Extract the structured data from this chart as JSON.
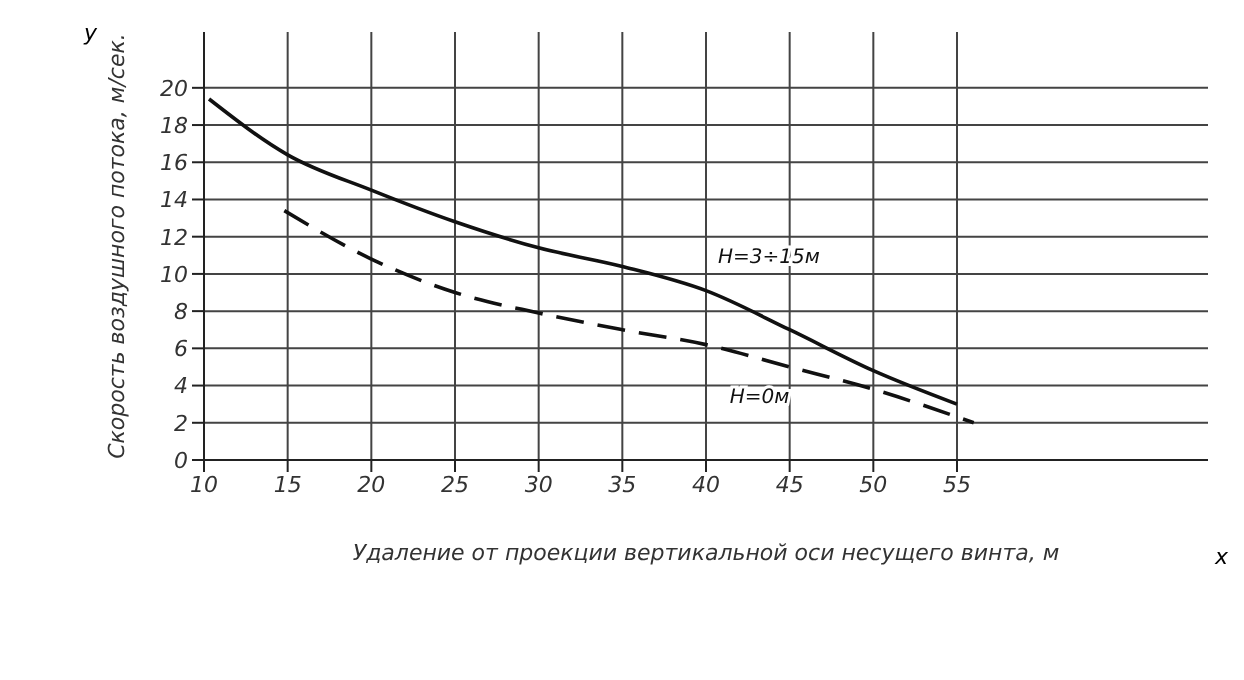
{
  "chart_data": {
    "type": "line",
    "xlabel": "Удаление от проекции вертикальной оси несущего винта, м",
    "ylabel": "Скорость воздушного потока, м/сек.",
    "series": [
      {
        "name": "H=3÷15м",
        "color": "#111111",
        "line_style": "solid",
        "x": [
          10.3,
          15,
          20,
          25,
          30,
          35,
          40,
          45,
          50,
          55
        ],
        "values": [
          19.4,
          16.4,
          14.5,
          12.8,
          11.4,
          10.4,
          9.1,
          7.0,
          4.8,
          3.0
        ]
      },
      {
        "name": "H=0м",
        "color": "#111111",
        "line_style": "dashed",
        "x": [
          14.8,
          20,
          25,
          30,
          35,
          40,
          45,
          50,
          56
        ],
        "values": [
          13.4,
          10.8,
          9.0,
          7.9,
          7.0,
          6.2,
          5.0,
          3.8,
          2.0
        ]
      }
    ],
    "xlim": [
      10,
      70
    ],
    "xticks": [
      10,
      15,
      20,
      25,
      30,
      35,
      40,
      45,
      50,
      55
    ],
    "ylim": [
      0,
      23
    ],
    "yticks": [
      0,
      2,
      4,
      6,
      8,
      10,
      12,
      14,
      16,
      18,
      20
    ],
    "grid": true,
    "marker": "none",
    "annotations": [
      "y",
      "x"
    ]
  }
}
